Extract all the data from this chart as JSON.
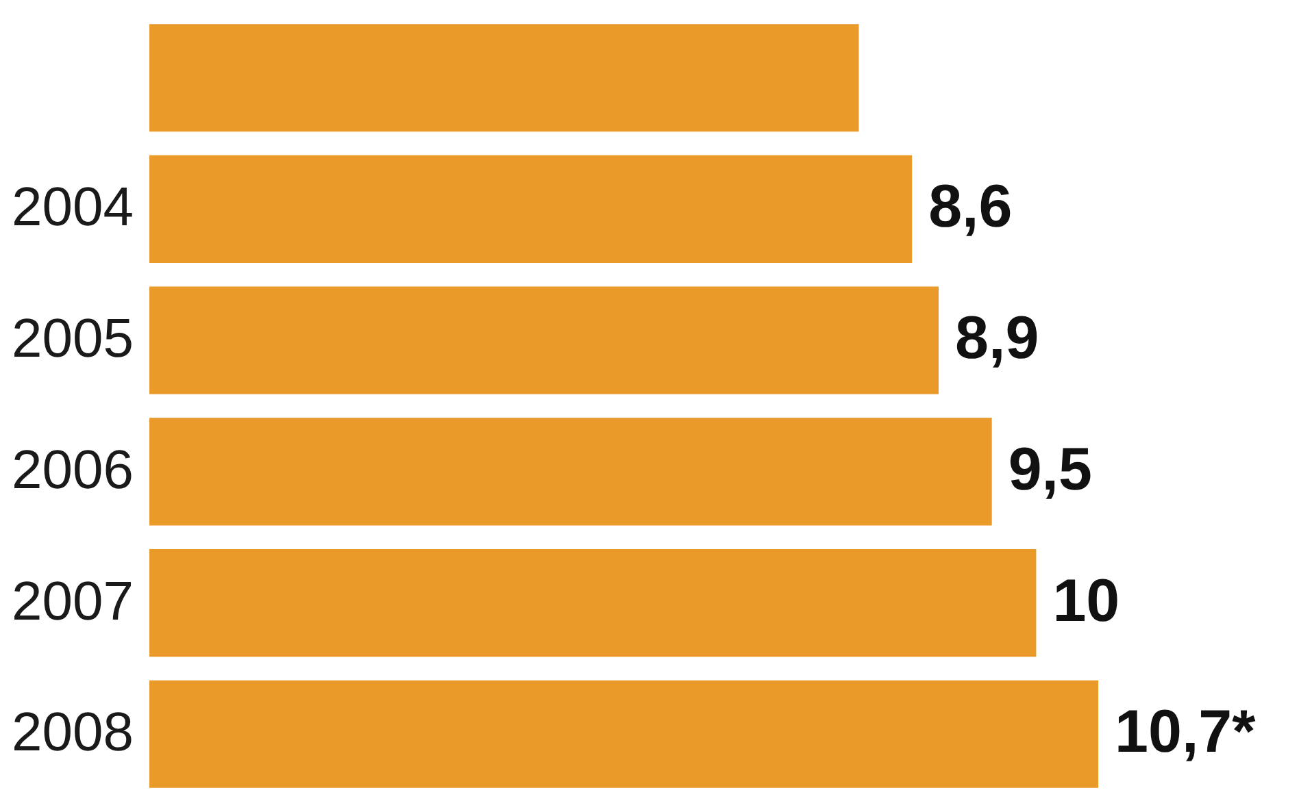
{
  "chart_data": {
    "type": "bar",
    "orientation": "horizontal",
    "categories": [
      null,
      "2004",
      "2005",
      "2006",
      "2007",
      "2008"
    ],
    "values": [
      8.0,
      8.6,
      8.9,
      9.5,
      10,
      10.7
    ],
    "value_labels": [
      null,
      "8,6",
      "8,9",
      "9,5",
      "10",
      "10,7*"
    ],
    "color": "#e99a28",
    "grid": false
  }
}
